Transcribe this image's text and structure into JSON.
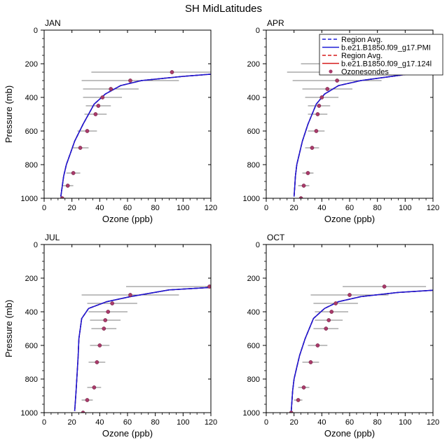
{
  "title": "SH MidLatitudes",
  "colors": {
    "model_pmi": "#1a1ad6",
    "model_124": "#d61a1a",
    "sondes_fill": "#a83a6a",
    "errbar": "#555555"
  },
  "chart_data": [
    {
      "type": "line",
      "panel_label": "JAN",
      "xlabel": "Ozone (ppb)",
      "ylabel": "Pressure (mb)",
      "xlim": [
        0,
        120
      ],
      "ylim": [
        1000,
        0
      ],
      "y_inverted": true,
      "xticks": [
        0,
        20,
        40,
        60,
        80,
        100,
        120
      ],
      "yticks": [
        0,
        200,
        400,
        600,
        800,
        1000
      ],
      "series": [
        {
          "name": "Region Avg.",
          "style": "dashed",
          "color": "#1a1ad6",
          "x": [
            12,
            13,
            14,
            16,
            19,
            22,
            28,
            36,
            44,
            55,
            70,
            100,
            120
          ],
          "y": [
            990,
            930,
            870,
            800,
            730,
            660,
            560,
            440,
            380,
            330,
            300,
            275,
            262
          ]
        },
        {
          "name": "b.e21.B1850.f09_g17.PMI",
          "style": "solid",
          "color": "#1a1ad6",
          "x": [
            12,
            13,
            14,
            16,
            19,
            22,
            28,
            36,
            44,
            55,
            70,
            100,
            120
          ],
          "y": [
            990,
            930,
            870,
            800,
            730,
            660,
            560,
            440,
            380,
            330,
            300,
            275,
            262
          ]
        },
        {
          "name": "Region Avg.",
          "style": "dashed",
          "color": "#d61a1a",
          "x": [
            12,
            13,
            14,
            16,
            19,
            22,
            28,
            36,
            44,
            55,
            70,
            100,
            120
          ],
          "y": [
            990,
            930,
            870,
            800,
            730,
            660,
            560,
            440,
            380,
            330,
            300,
            275,
            262
          ]
        },
        {
          "name": "b.e21.B1850.f09_g17.124l",
          "style": "solid",
          "color": "#d61a1a",
          "x": [
            12,
            13,
            14,
            16,
            19,
            22,
            28,
            36,
            44,
            55,
            70,
            100,
            120
          ],
          "y": [
            990,
            930,
            870,
            800,
            730,
            660,
            560,
            440,
            380,
            330,
            300,
            275,
            262
          ]
        }
      ],
      "sondes": {
        "name": "Ozonesondes",
        "x": [
          13,
          17,
          21,
          26,
          31,
          37,
          39,
          42,
          48,
          62,
          92
        ],
        "y": [
          1000,
          925,
          850,
          700,
          600,
          500,
          450,
          400,
          350,
          300,
          250
        ],
        "err": [
          1.5,
          4,
          5,
          6,
          7,
          8,
          9,
          14,
          20,
          35,
          58
        ]
      }
    },
    {
      "type": "line",
      "panel_label": "APR",
      "xlabel": "Ozone (ppb)",
      "ylabel": "Pressure (mb)",
      "xlim": [
        0,
        120
      ],
      "ylim": [
        1000,
        0
      ],
      "y_inverted": true,
      "xticks": [
        0,
        20,
        40,
        60,
        80,
        100,
        120
      ],
      "yticks": [
        0,
        200,
        400,
        600,
        800,
        1000
      ],
      "series": [
        {
          "name": "Region Avg.",
          "style": "dashed",
          "color": "#1a1ad6",
          "x": [
            20,
            20.5,
            21,
            22,
            24,
            26,
            30,
            36,
            42,
            52,
            68,
            95,
            120
          ],
          "y": [
            990,
            930,
            870,
            800,
            730,
            660,
            560,
            440,
            380,
            330,
            300,
            270,
            240
          ]
        },
        {
          "name": "b.e21.B1850.f09_g17.PMI",
          "style": "solid",
          "color": "#1a1ad6",
          "x": [
            20,
            20.5,
            21,
            22,
            24,
            26,
            30,
            36,
            42,
            52,
            68,
            95,
            120
          ],
          "y": [
            990,
            930,
            870,
            800,
            730,
            660,
            560,
            440,
            380,
            330,
            300,
            270,
            240
          ]
        },
        {
          "name": "Region Avg.",
          "style": "dashed",
          "color": "#d61a1a",
          "x": [
            20,
            20.5,
            21,
            22,
            24,
            26,
            30,
            36,
            42,
            52,
            68,
            95,
            120
          ],
          "y": [
            990,
            930,
            870,
            800,
            730,
            660,
            560,
            440,
            380,
            330,
            300,
            270,
            240
          ]
        },
        {
          "name": "b.e21.B1850.f09_g17.124l",
          "style": "solid",
          "color": "#d61a1a",
          "x": [
            20,
            20.5,
            21,
            22,
            24,
            26,
            30,
            36,
            42,
            52,
            68,
            95,
            120
          ],
          "y": [
            990,
            930,
            870,
            800,
            730,
            660,
            560,
            440,
            380,
            330,
            300,
            270,
            240
          ]
        }
      ],
      "sondes": {
        "name": "Ozonesondes",
        "x": [
          25,
          27,
          30,
          33,
          36,
          37,
          38,
          40,
          44,
          51,
          63,
          85
        ],
        "y": [
          1000,
          925,
          850,
          700,
          600,
          500,
          450,
          400,
          350,
          300,
          250,
          200
        ],
        "err": [
          3,
          4,
          4,
          5,
          6,
          7,
          8,
          12,
          18,
          32,
          48,
          60
        ]
      }
    },
    {
      "type": "line",
      "panel_label": "JUL",
      "xlabel": "Ozone (ppb)",
      "ylabel": "Pressure (mb)",
      "xlim": [
        0,
        120
      ],
      "ylim": [
        1000,
        0
      ],
      "y_inverted": true,
      "xticks": [
        0,
        20,
        40,
        60,
        80,
        100,
        120
      ],
      "yticks": [
        0,
        200,
        400,
        600,
        800,
        1000
      ],
      "series": [
        {
          "name": "Region Avg.",
          "style": "dashed",
          "color": "#1a1ad6",
          "x": [
            22,
            22.5,
            23,
            23.5,
            24,
            24.5,
            25,
            27,
            32,
            45,
            62,
            90,
            120
          ],
          "y": [
            990,
            930,
            870,
            800,
            730,
            660,
            560,
            440,
            380,
            340,
            310,
            270,
            255
          ]
        },
        {
          "name": "b.e21.B1850.f09_g17.PMI",
          "style": "solid",
          "color": "#1a1ad6",
          "x": [
            22,
            22.5,
            23,
            23.5,
            24,
            24.5,
            25,
            27,
            32,
            45,
            62,
            90,
            120
          ],
          "y": [
            990,
            930,
            870,
            800,
            730,
            660,
            560,
            440,
            380,
            340,
            310,
            270,
            255
          ]
        },
        {
          "name": "Region Avg.",
          "style": "dashed",
          "color": "#d61a1a",
          "x": [
            22,
            22.5,
            23,
            23.5,
            24,
            24.5,
            25,
            27,
            32,
            45,
            62,
            90,
            120
          ],
          "y": [
            990,
            930,
            870,
            800,
            730,
            660,
            560,
            440,
            380,
            340,
            310,
            270,
            255
          ]
        },
        {
          "name": "b.e21.B1850.f09_g17.124l",
          "style": "solid",
          "color": "#d61a1a",
          "x": [
            22,
            22.5,
            23,
            23.5,
            24,
            24.5,
            25,
            27,
            32,
            45,
            62,
            90,
            120
          ],
          "y": [
            990,
            930,
            870,
            800,
            730,
            660,
            560,
            440,
            380,
            340,
            310,
            270,
            255
          ]
        }
      ],
      "sondes": {
        "name": "Ozonesondes",
        "x": [
          28,
          31,
          36,
          38,
          40,
          43,
          44,
          46,
          49,
          62,
          119
        ],
        "y": [
          1000,
          925,
          850,
          700,
          600,
          500,
          450,
          400,
          350,
          300,
          250
        ],
        "err": [
          2,
          4,
          5,
          6,
          7,
          9,
          11,
          14,
          18,
          35,
          60
        ]
      }
    },
    {
      "type": "line",
      "panel_label": "OCT",
      "xlabel": "Ozone (ppb)",
      "ylabel": "Pressure (mb)",
      "xlim": [
        0,
        120
      ],
      "ylim": [
        1000,
        0
      ],
      "y_inverted": true,
      "xticks": [
        0,
        20,
        40,
        60,
        80,
        100,
        120
      ],
      "yticks": [
        0,
        200,
        400,
        600,
        800,
        1000
      ],
      "series": [
        {
          "name": "Region Avg.",
          "style": "dashed",
          "color": "#1a1ad6",
          "x": [
            18,
            18.5,
            19,
            20,
            22,
            24,
            28,
            34,
            42,
            52,
            68,
            95,
            120
          ],
          "y": [
            990,
            930,
            870,
            800,
            730,
            660,
            560,
            440,
            380,
            340,
            310,
            285,
            272
          ]
        },
        {
          "name": "b.e21.B1850.f09_g17.PMI",
          "style": "solid",
          "color": "#1a1ad6",
          "x": [
            18,
            18.5,
            19,
            20,
            22,
            24,
            28,
            34,
            42,
            52,
            68,
            95,
            120
          ],
          "y": [
            990,
            930,
            870,
            800,
            730,
            660,
            560,
            440,
            380,
            340,
            310,
            285,
            272
          ]
        },
        {
          "name": "Region Avg.",
          "style": "dashed",
          "color": "#d61a1a",
          "x": [
            18,
            18.5,
            19,
            20,
            22,
            24,
            28,
            34,
            42,
            52,
            68,
            95,
            120
          ],
          "y": [
            990,
            930,
            870,
            800,
            730,
            660,
            560,
            440,
            380,
            340,
            310,
            285,
            272
          ]
        },
        {
          "name": "b.e21.B1850.f09_g17.124l",
          "style": "solid",
          "color": "#d61a1a",
          "x": [
            18,
            18.5,
            19,
            20,
            22,
            24,
            28,
            34,
            42,
            52,
            68,
            95,
            120
          ],
          "y": [
            990,
            930,
            870,
            800,
            730,
            660,
            560,
            440,
            380,
            340,
            310,
            285,
            272
          ]
        }
      ],
      "sondes": {
        "name": "Ozonesondes",
        "x": [
          18,
          23,
          27,
          32,
          37,
          43,
          45,
          47,
          50,
          60,
          85
        ],
        "y": [
          1000,
          925,
          850,
          700,
          600,
          500,
          450,
          400,
          350,
          300,
          250
        ],
        "err": [
          1.5,
          3,
          4,
          6,
          7,
          9,
          10,
          12,
          16,
          28,
          30
        ]
      }
    }
  ],
  "legend": {
    "entries": [
      {
        "label": "Region Avg.",
        "kind": "line",
        "style": "dashed",
        "color": "#1a1ad6"
      },
      {
        "label": "b.e21.B1850.f09_g17.PMI",
        "kind": "line",
        "style": "solid",
        "color": "#1a1ad6"
      },
      {
        "label": "Region Avg.",
        "kind": "line",
        "style": "dashed",
        "color": "#d61a1a"
      },
      {
        "label": "b.e21.B1850.f09_g17.124l",
        "kind": "line",
        "style": "solid",
        "color": "#d61a1a"
      },
      {
        "label": "Ozonesondes",
        "kind": "marker",
        "color": "#a83a6a"
      }
    ]
  }
}
